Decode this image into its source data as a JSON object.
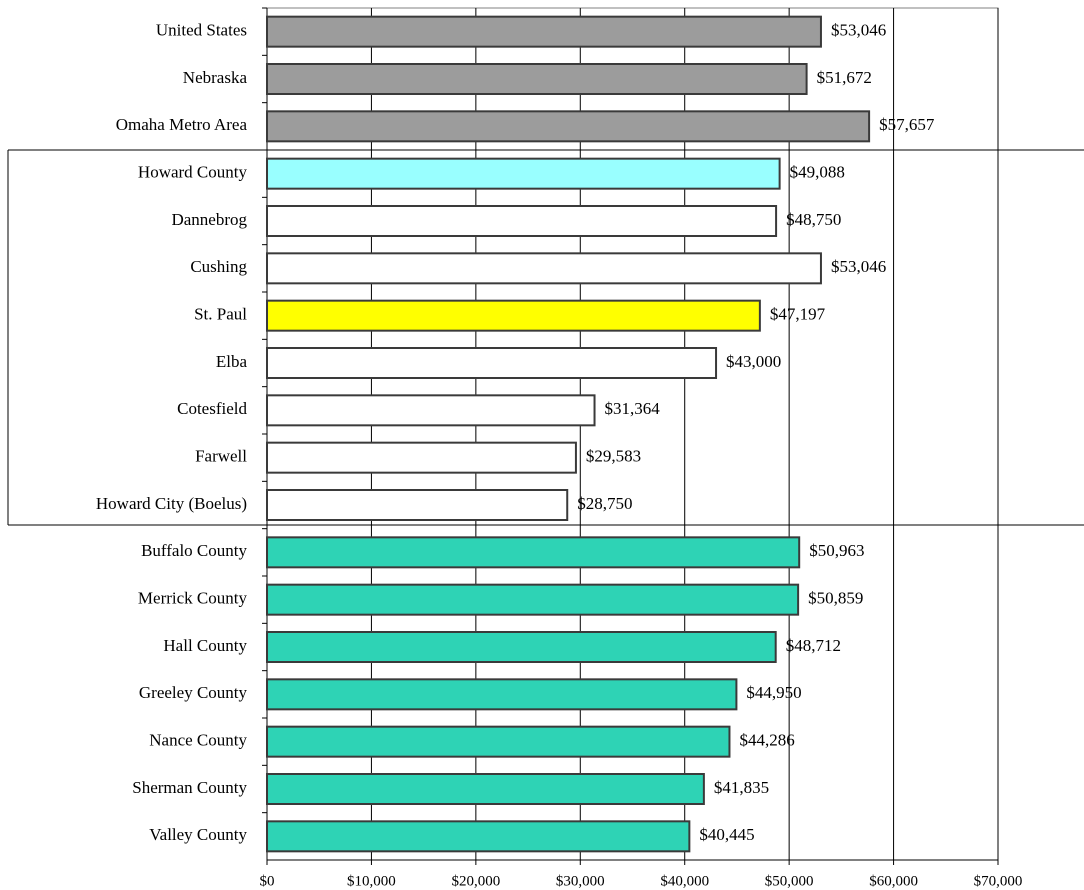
{
  "chart_data": {
    "type": "bar",
    "orientation": "horizontal",
    "categories": [
      "United States",
      "Nebraska",
      "Omaha Metro Area",
      "Howard County",
      "Dannebrog",
      "Cushing",
      "St. Paul",
      "Elba",
      "Cotesfield",
      "Farwell",
      "Howard City (Boelus)",
      "Buffalo County",
      "Merrick County",
      "Hall County",
      "Greeley County",
      "Nance County",
      "Sherman County",
      "Valley County"
    ],
    "values": [
      53046,
      51672,
      57657,
      49088,
      48750,
      53046,
      47197,
      43000,
      31364,
      29583,
      28750,
      50963,
      50859,
      48712,
      44950,
      44286,
      41835,
      40445
    ],
    "value_labels": [
      "$53,046",
      "$51,672",
      "$57,657",
      "$49,088",
      "$48,750",
      "$53,046",
      "$47,197",
      "$43,000",
      "$31,364",
      "$29,583",
      "$28,750",
      "$50,963",
      "$50,859",
      "$48,712",
      "$44,950",
      "$44,286",
      "$41,835",
      "$40,445"
    ],
    "colors": [
      "#9c9c9c",
      "#9c9c9c",
      "#9c9c9c",
      "#99ffff",
      "#ffffff",
      "#ffffff",
      "#ffff00",
      "#ffffff",
      "#ffffff",
      "#ffffff",
      "#ffffff",
      "#2ed3b5",
      "#2ed3b5",
      "#2ed3b5",
      "#2ed3b5",
      "#2ed3b5",
      "#2ed3b5",
      "#2ed3b5"
    ],
    "xlim": [
      0,
      70000
    ],
    "xticks": [
      {
        "value": 0,
        "label": "$0"
      },
      {
        "value": 10000,
        "label": "$10,000"
      },
      {
        "value": 20000,
        "label": "$20,000"
      },
      {
        "value": 30000,
        "label": "$30,000"
      },
      {
        "value": 40000,
        "label": "$40,000"
      },
      {
        "value": 50000,
        "label": "$50,000"
      },
      {
        "value": 60000,
        "label": "$60,000"
      },
      {
        "value": 70000,
        "label": "$70,000"
      }
    ],
    "grid": true
  }
}
